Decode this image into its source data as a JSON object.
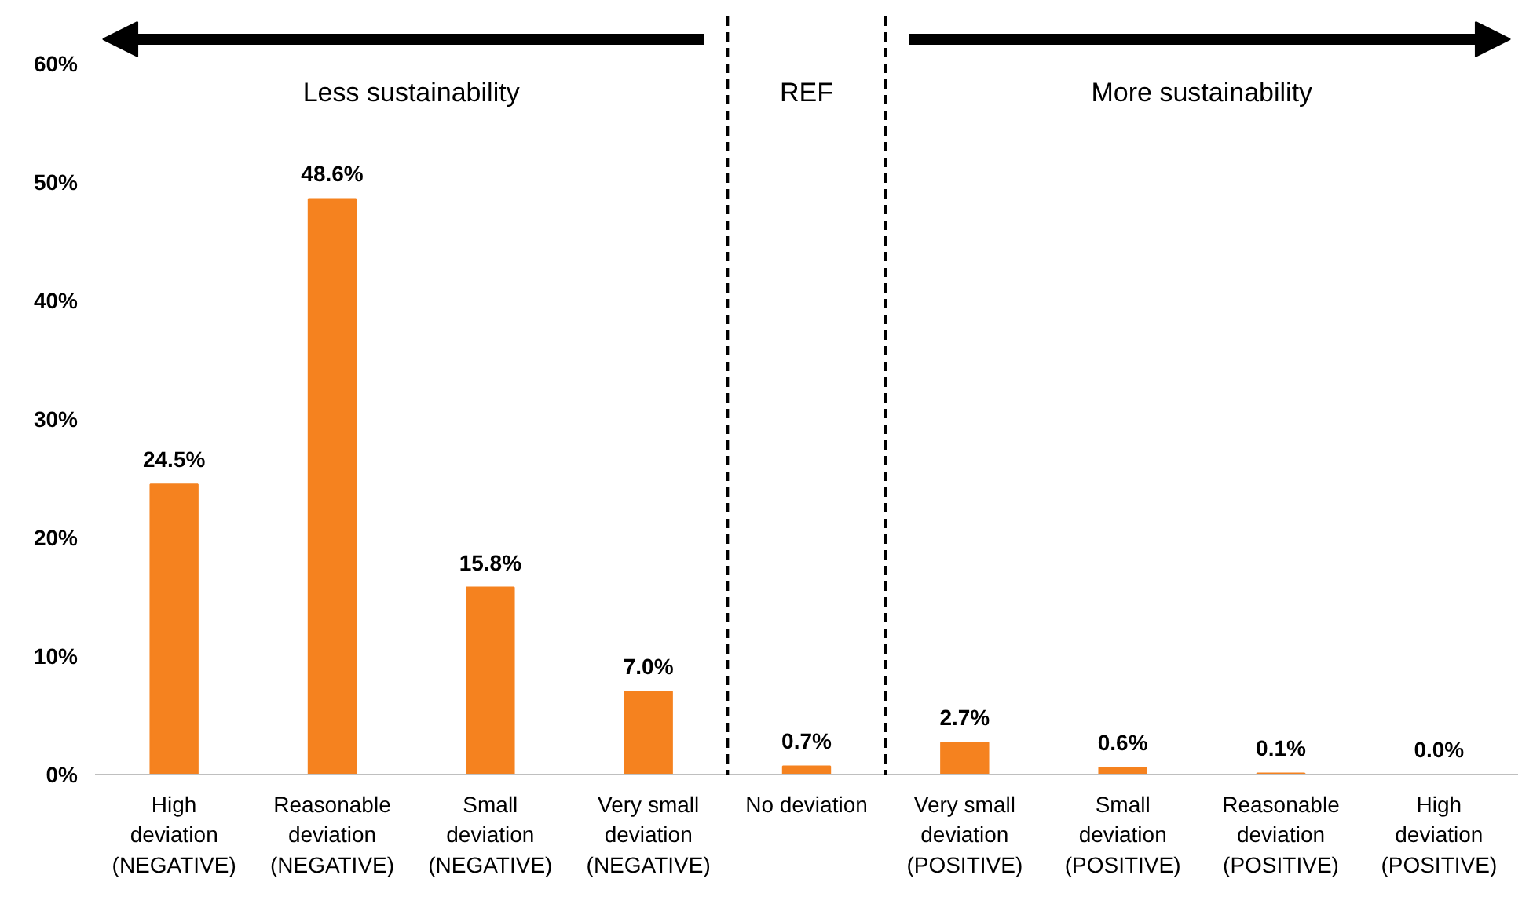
{
  "chart_data": {
    "type": "bar",
    "categories": [
      "High\ndeviation\n(NEGATIVE)",
      "Reasonable\ndeviation\n(NEGATIVE)",
      "Small\ndeviation\n(NEGATIVE)",
      "Very small\ndeviation\n(NEGATIVE)",
      "No deviation",
      "Very small\ndeviation\n(POSITIVE)",
      "Small\ndeviation\n(POSITIVE)",
      "Reasonable\ndeviation\n(POSITIVE)",
      "High\ndeviation\n(POSITIVE)"
    ],
    "values": [
      24.5,
      48.6,
      15.8,
      7.0,
      0.7,
      2.7,
      0.6,
      0.1,
      0.0
    ],
    "value_labels": [
      "24.5%",
      "48.6%",
      "15.8%",
      "7.0%",
      "0.7%",
      "2.7%",
      "0.6%",
      "0.1%",
      "0.0%"
    ],
    "color": "#f5821f",
    "ylim": [
      0,
      64
    ],
    "yticks": [
      {
        "value": 0,
        "label": "0%"
      },
      {
        "value": 10,
        "label": "10%"
      },
      {
        "value": 20,
        "label": "20%"
      },
      {
        "value": 30,
        "label": "30%"
      },
      {
        "value": 40,
        "label": "40%"
      },
      {
        "value": 50,
        "label": "50%"
      },
      {
        "value": 60,
        "label": "60%"
      }
    ],
    "annotations": [
      "Less sustainability",
      "REF",
      "More sustainability"
    ],
    "grid": false
  }
}
